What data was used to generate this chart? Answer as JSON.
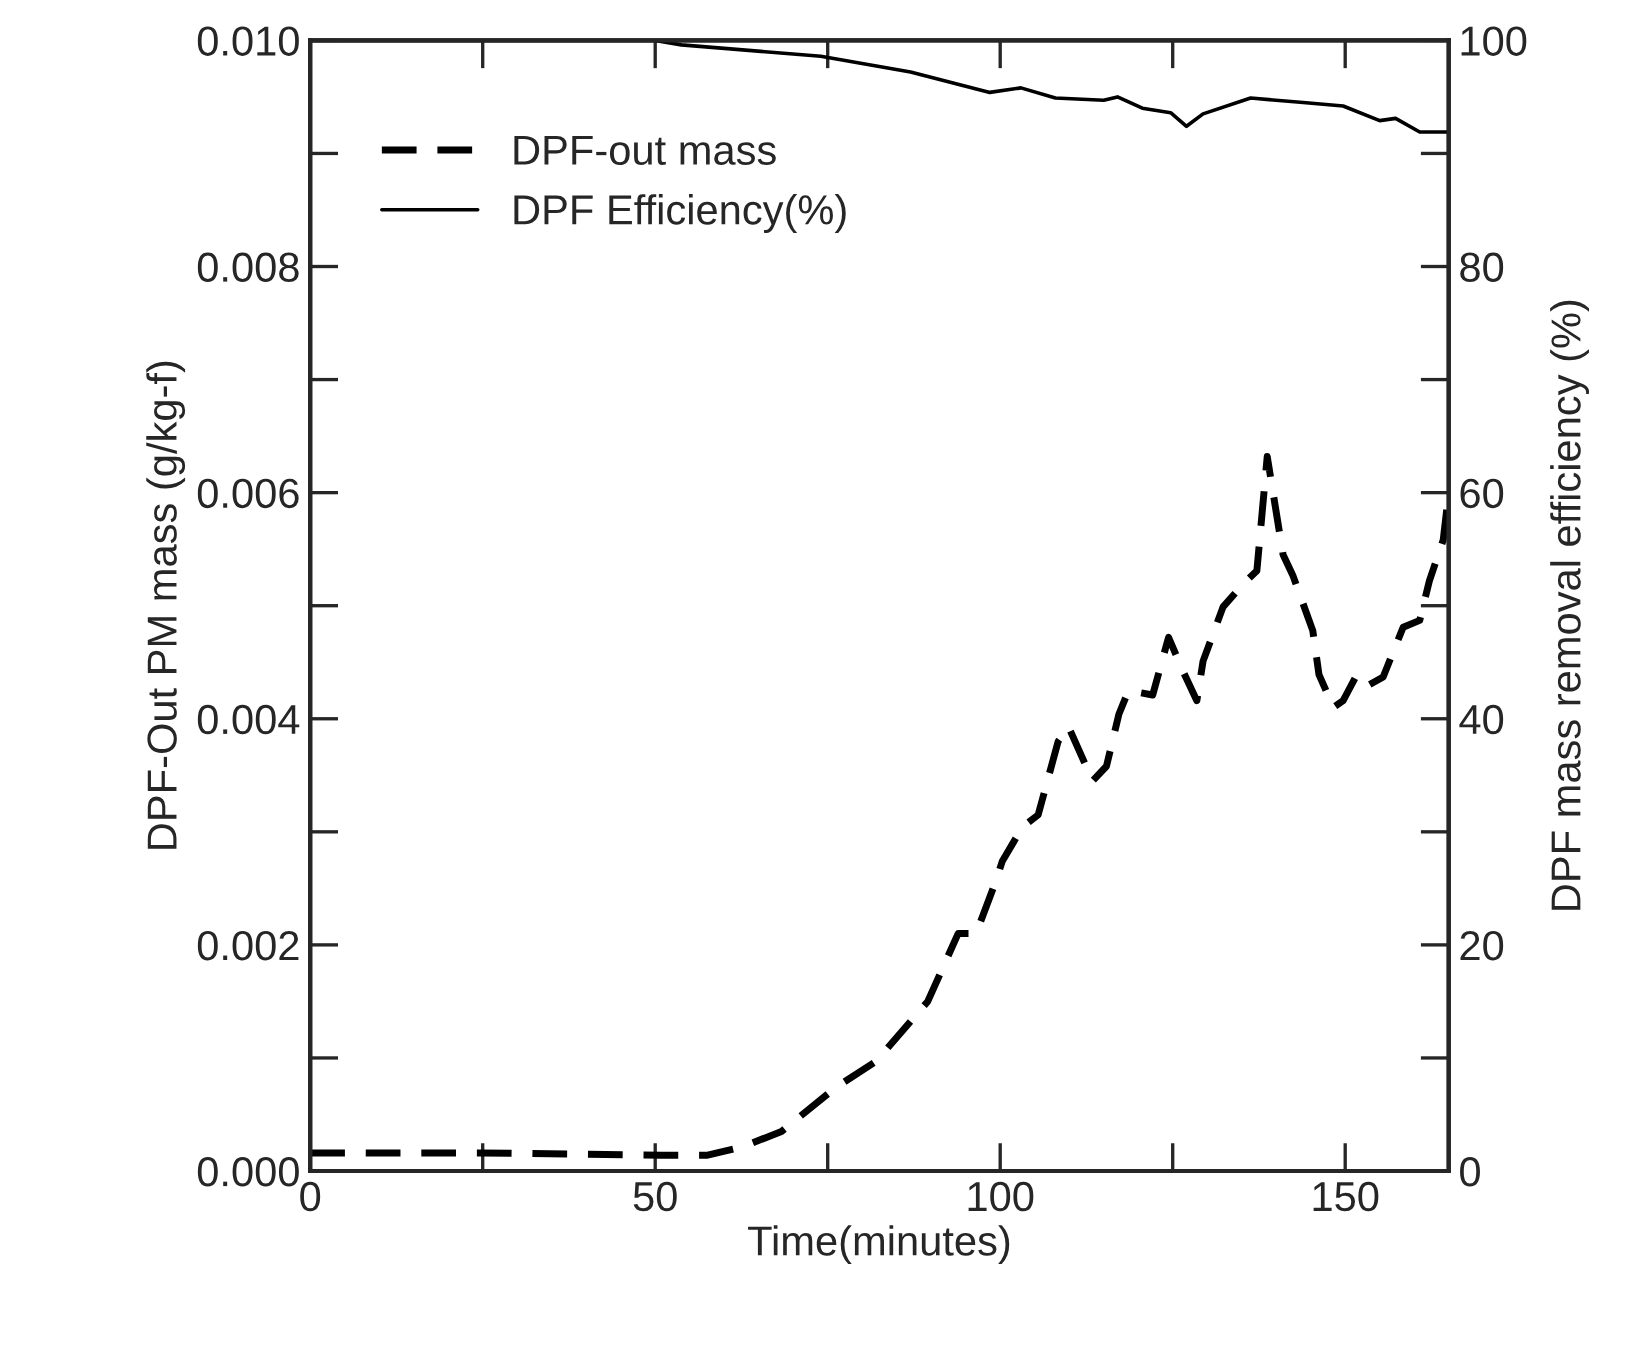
{
  "chart_data": {
    "type": "line",
    "xlabel": "Time(minutes)",
    "ylabel": "DPF-Out PM mass (g/kg-f)",
    "y2label": "DPF mass removal efficiency (%)",
    "xlim": [
      0,
      165
    ],
    "xticks": [
      0,
      {
        "value": 25,
        "label": null
      },
      50,
      {
        "value": 75,
        "label": null
      },
      100,
      {
        "value": 125,
        "label": null
      },
      150
    ],
    "ylim": [
      0,
      0.01
    ],
    "yticks": [
      {
        "value": 0,
        "label": "0.000"
      },
      {
        "value": 0.001,
        "label": null
      },
      {
        "value": 0.002,
        "label": "0.002"
      },
      {
        "value": 0.003,
        "label": null
      },
      {
        "value": 0.004,
        "label": "0.004"
      },
      {
        "value": 0.005,
        "label": null
      },
      {
        "value": 0.006,
        "label": "0.006"
      },
      {
        "value": 0.007,
        "label": null
      },
      {
        "value": 0.008,
        "label": "0.008"
      },
      {
        "value": 0.009,
        "label": null
      },
      {
        "value": 0.01,
        "label": "0.010"
      }
    ],
    "y2lim": [
      0,
      100
    ],
    "y2ticks": [
      0,
      {
        "value": 10,
        "label": null
      },
      20,
      {
        "value": 30,
        "label": null
      },
      40,
      {
        "value": 50,
        "label": null
      },
      60,
      {
        "value": 70,
        "label": null
      },
      80,
      {
        "value": 90,
        "label": null
      },
      100
    ],
    "legend": "top left",
    "grid": false,
    "series": [
      {
        "name": "DPF-out mass",
        "color": "#000000",
        "line_style": "dashed",
        "x": [
          0,
          24.7,
          50.9,
          57.6,
          62.5,
          68.3,
          76.2,
          82,
          89.5,
          93.9,
          96.5,
          99.4,
          100.3,
          103.2,
          105.5,
          108.4,
          109.9,
          113.4,
          115.4,
          117.2,
          118.6,
          122.1,
          124.4,
          126.5,
          128.5,
          129.4,
          132.3,
          135.2,
          137.2,
          138.7,
          141,
          142.4,
          145.3,
          146.2,
          148.3,
          149.7,
          151.7,
          153.5,
          155.5,
          158.4,
          160.8,
          162.2,
          164.2,
          165
        ],
        "values": [
          0.00016,
          0.00016,
          0.00014,
          0.00014,
          0.00021,
          0.00035,
          0.00074,
          0.00097,
          0.0015,
          0.0021,
          0.0021,
          0.00257,
          0.00274,
          0.00304,
          0.00315,
          0.0038,
          0.00393,
          0.00345,
          0.00358,
          0.00404,
          0.00425,
          0.00421,
          0.00472,
          0.00442,
          0.00416,
          0.00451,
          0.00499,
          0.00519,
          0.00531,
          0.00632,
          0.00545,
          0.00527,
          0.00478,
          0.00439,
          0.0041,
          0.00416,
          0.00439,
          0.0043,
          0.00437,
          0.00481,
          0.00487,
          0.00522,
          0.00558,
          0.006
        ]
      },
      {
        "name": "DPF Efficiency(%)",
        "color": "#000000",
        "line_style": "solid",
        "axis": "y2",
        "x": [
          0,
          50,
          53.8,
          74,
          87,
          98.5,
          103,
          108,
          115,
          117,
          120.6,
          124.7,
          127,
          129.4,
          136.3,
          143.9,
          149.7,
          155,
          157.3,
          160.8,
          164.8
        ],
        "values": [
          100,
          100,
          99.6,
          98.6,
          97.2,
          95.4,
          95.8,
          94.9,
          94.7,
          95.0,
          94.0,
          93.6,
          92.4,
          93.5,
          94.9,
          94.5,
          94.2,
          92.9,
          93.1,
          91.9,
          91.9
        ]
      }
    ]
  }
}
